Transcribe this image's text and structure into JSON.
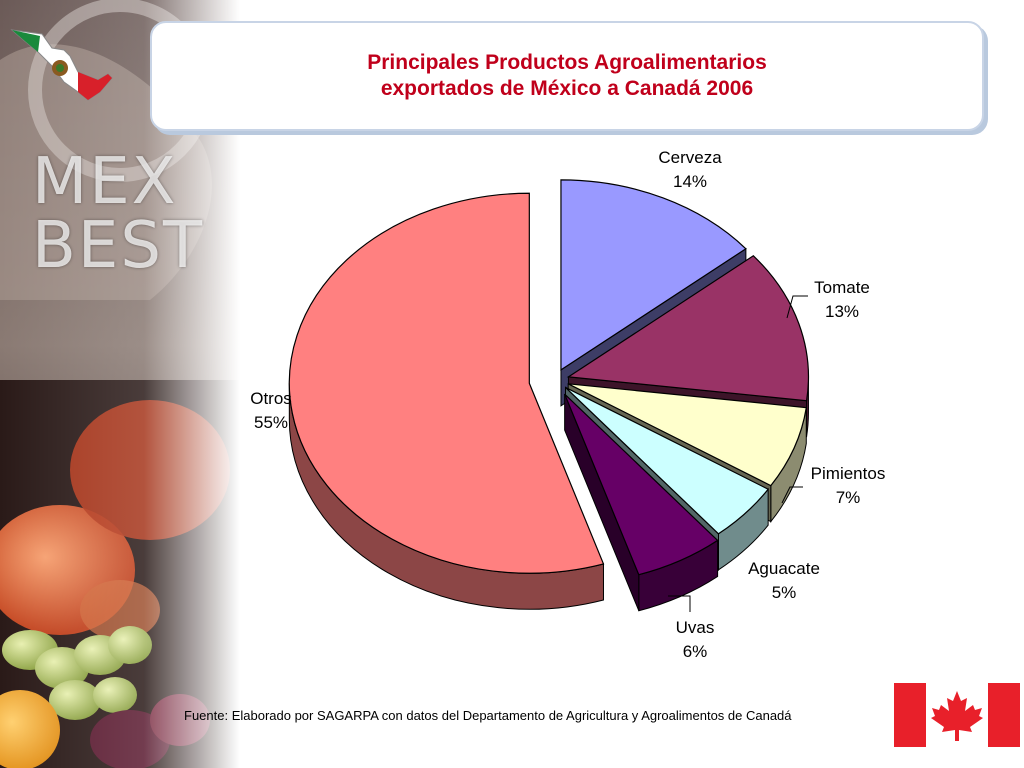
{
  "title": {
    "line1": "Principales Productos Agroalimentarios",
    "line2": "exportados de México a Canadá 2006"
  },
  "logo": {
    "line1": "MEX",
    "line2": "BEST"
  },
  "footer": "Fuente: Elaborado por SAGARPA con datos del Departamento de Agricultura y Agroalimentos de Canadá",
  "colors": {
    "title": "#c0001b",
    "canada_red": "#e8202a",
    "mexico_green": "#1a8a3c"
  },
  "chart_data": {
    "type": "pie",
    "title": "Principales Productos Agroalimentarios exportados de México a Canadá 2006",
    "slices": [
      {
        "name": "Cerveza",
        "value": 14,
        "label": "14%",
        "color": "#9999ff"
      },
      {
        "name": "Tomate",
        "value": 13,
        "label": "13%",
        "color": "#993366"
      },
      {
        "name": "Pimientos",
        "value": 7,
        "label": "7%",
        "color": "#ffffcc"
      },
      {
        "name": "Aguacate",
        "value": 5,
        "label": "5%",
        "color": "#ccffff"
      },
      {
        "name": "Uvas",
        "value": 6,
        "label": "6%",
        "color": "#660066"
      },
      {
        "name": "Otros",
        "value": 55,
        "label": "55%",
        "color": "#ff8080"
      }
    ]
  }
}
